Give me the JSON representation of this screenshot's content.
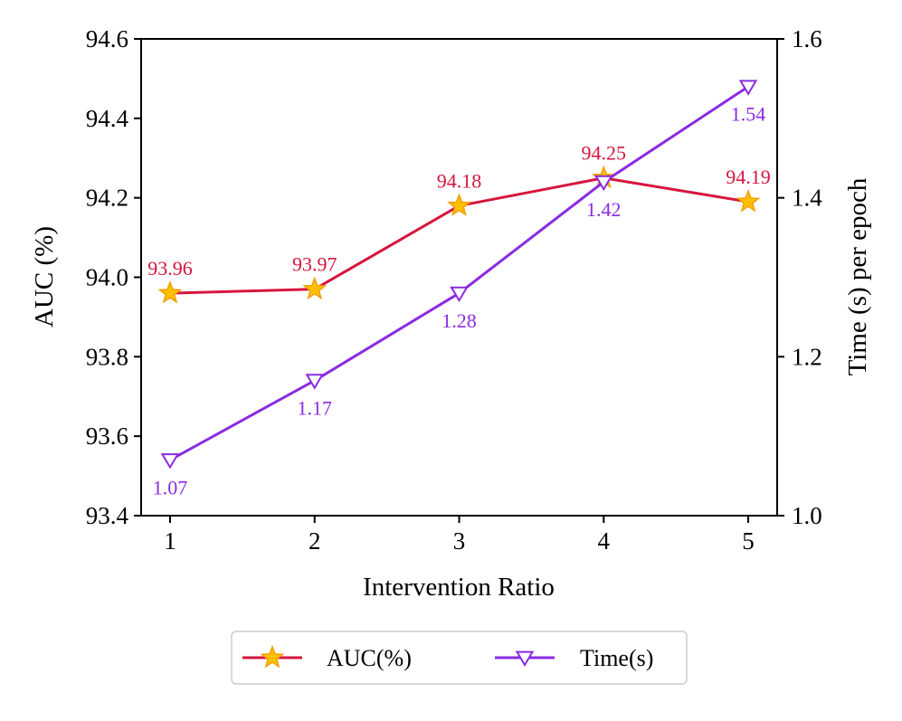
{
  "chart_data": {
    "type": "line",
    "title": "",
    "xlabel": "Intervention Ratio",
    "ylabel_left": "AUC (%)",
    "ylabel_right": "Time (s) per epoch",
    "x": [
      1,
      2,
      3,
      4,
      5
    ],
    "x_ticks": [
      "1",
      "2",
      "3",
      "4",
      "5"
    ],
    "xlim": [
      0.8,
      5.2
    ],
    "ylim_left": [
      93.4,
      94.6
    ],
    "ylim_right": [
      1.0,
      1.6
    ],
    "left_ticks": [
      "93.4",
      "93.6",
      "93.8",
      "94.0",
      "94.2",
      "94.4",
      "94.6"
    ],
    "right_ticks": [
      "1.0",
      "1.2",
      "1.4",
      "1.6"
    ],
    "legend_position": "bottom-center, below plot",
    "series": [
      {
        "name": "AUC(%)",
        "axis": "left",
        "color": "#d6163e",
        "marker": "star",
        "marker_fill": "#ffc000",
        "marker_edge": "#f0a000",
        "values": [
          93.96,
          93.97,
          94.18,
          94.25,
          94.19
        ],
        "labels": [
          "93.96",
          "93.97",
          "94.18",
          "94.25",
          "94.19"
        ],
        "label_position": "above"
      },
      {
        "name": "Time(s)",
        "axis": "right",
        "color": "#8a2be2",
        "marker": "triangle-down-open",
        "marker_fill": "#ffffff",
        "marker_edge": "#8a2be2",
        "values": [
          1.07,
          1.17,
          1.28,
          1.42,
          1.54
        ],
        "labels": [
          "1.07",
          "1.17",
          "1.28",
          "1.42",
          "1.54"
        ],
        "label_position": "below"
      }
    ]
  }
}
